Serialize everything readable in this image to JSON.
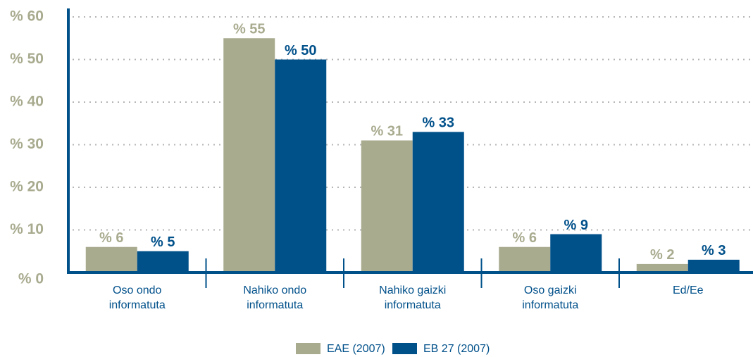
{
  "chart_data": {
    "type": "bar",
    "categories": [
      "Oso ondo informatuta",
      "Nahiko ondo informatuta",
      "Nahiko gaizki informatuta",
      "Oso gaizki informatuta",
      "Ed/Ee"
    ],
    "series": [
      {
        "name": "EAE (2007)",
        "color": "#a9ab8f",
        "values": [
          6,
          55,
          31,
          6,
          2
        ],
        "value_labels": [
          "% 6",
          "% 55",
          "% 31",
          "% 6",
          "% 2"
        ]
      },
      {
        "name": "EB 27 (2007)",
        "color": "#00508a",
        "values": [
          5,
          50,
          33,
          9,
          3
        ],
        "value_labels": [
          "% 5",
          "% 50",
          "% 33",
          "% 9",
          "% 3"
        ]
      }
    ],
    "ylim": [
      0,
      60
    ],
    "yticks": [
      {
        "value": 0,
        "label": "% 0"
      },
      {
        "value": 10,
        "label": "% 10"
      },
      {
        "value": 20,
        "label": "% 20"
      },
      {
        "value": 30,
        "label": "% 30"
      },
      {
        "value": 40,
        "label": "% 40"
      },
      {
        "value": 50,
        "label": "% 50"
      },
      {
        "value": 60,
        "label": "% 60"
      }
    ],
    "grid": true,
    "legend": "bottom"
  }
}
